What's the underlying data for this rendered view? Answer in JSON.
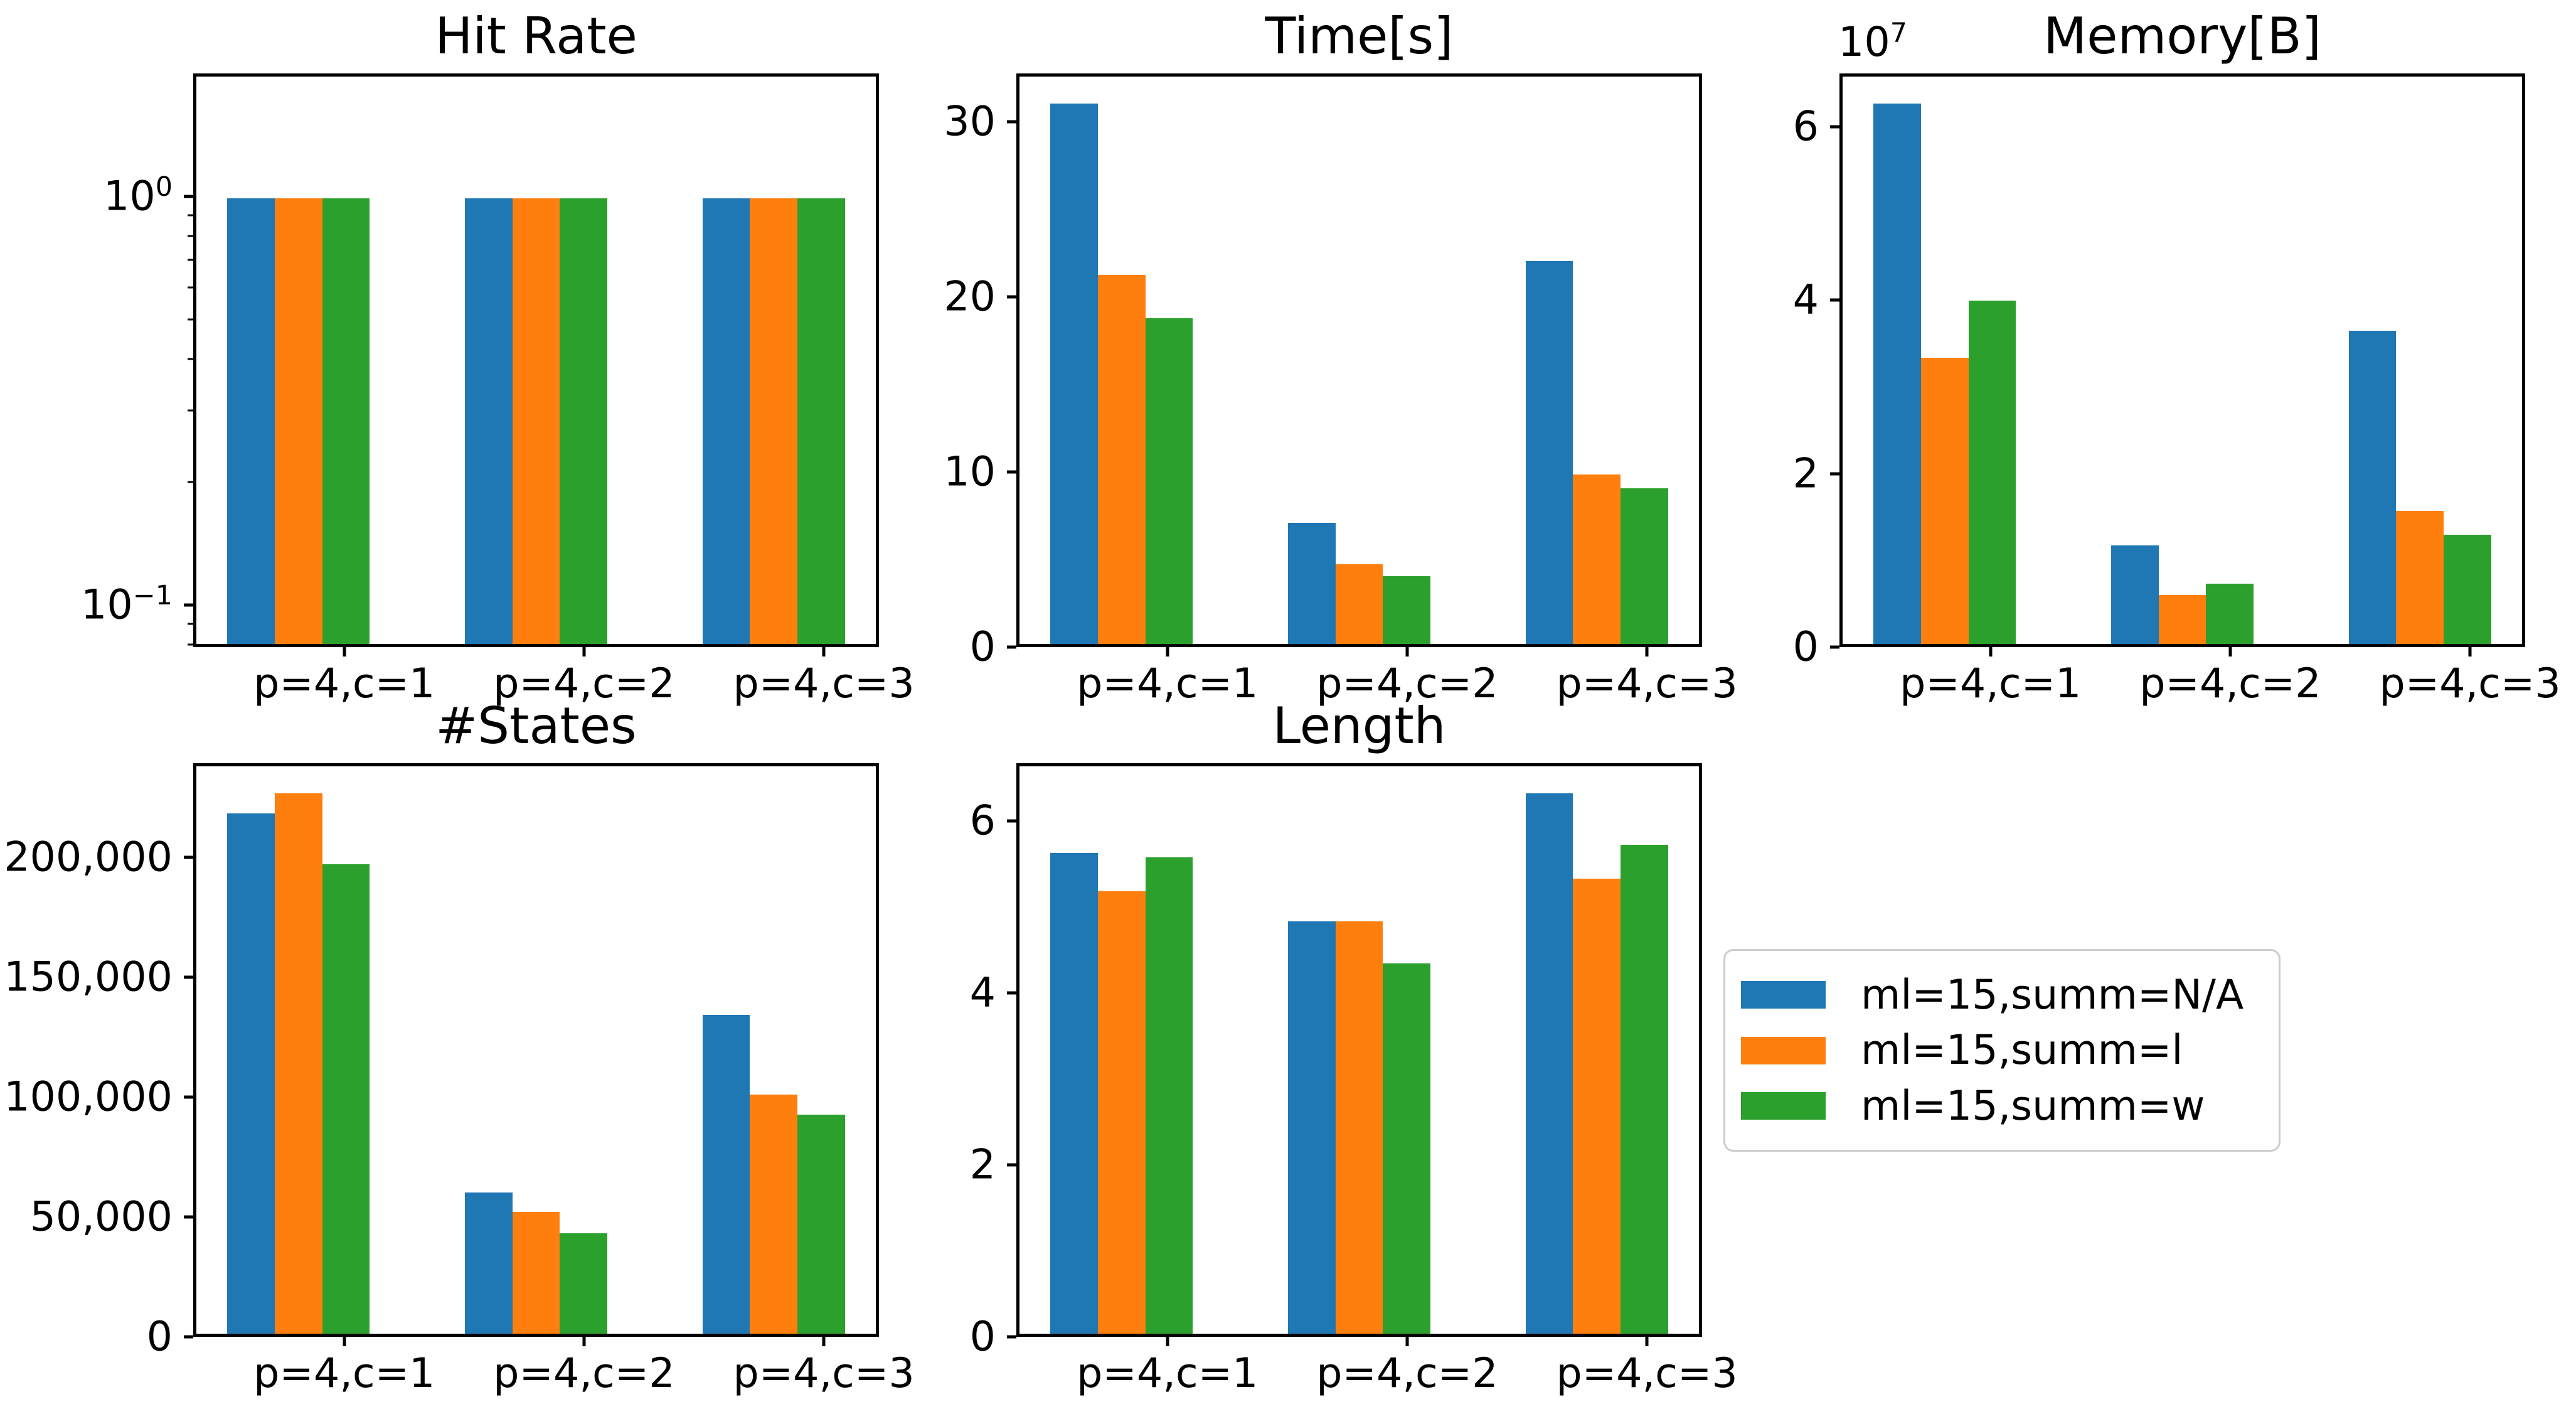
{
  "figure": {
    "background": "#ffffff"
  },
  "colors": {
    "blue": "#1f77b4",
    "orange": "#ff7f0e",
    "green": "#2ca02c",
    "axis": "#000000",
    "legend_border": "#cccccc",
    "text": "#000000"
  },
  "categories": [
    "p=4,c=1",
    "p=4,c=2",
    "p=4,c=3"
  ],
  "legend": {
    "items": [
      {
        "label": "ml=15,summ=N/A",
        "color": "blue"
      },
      {
        "label": "ml=15,summ=l",
        "color": "orange"
      },
      {
        "label": "ml=15,summ=w",
        "color": "green"
      }
    ]
  },
  "bar_layout": {
    "xlim": [
      -0.63,
      2.23
    ],
    "bar_width": 0.2,
    "ticks_at": [
      0,
      1,
      2
    ]
  },
  "chart_data": [
    {
      "id": "hit-rate",
      "type": "bar",
      "title": "Hit Rate",
      "yscale": "log",
      "ylim": [
        0.079,
        2.0
      ],
      "yticks": [
        {
          "v": 1.0,
          "label": "10^0"
        },
        {
          "v": 0.1,
          "label": "10^−1"
        }
      ],
      "minor_yticks": [
        0.08,
        0.09,
        0.2,
        0.3,
        0.4,
        0.5,
        0.6,
        0.7,
        0.8,
        0.9
      ],
      "categories": [
        "p=4,c=1",
        "p=4,c=2",
        "p=4,c=3"
      ],
      "series": [
        {
          "name": "ml=15,summ=N/A",
          "color": "blue",
          "values": [
            1.0,
            1.0,
            1.0
          ]
        },
        {
          "name": "ml=15,summ=l",
          "color": "orange",
          "values": [
            1.0,
            1.0,
            1.0
          ]
        },
        {
          "name": "ml=15,summ=w",
          "color": "green",
          "values": [
            1.0,
            1.0,
            1.0
          ]
        }
      ]
    },
    {
      "id": "time",
      "type": "bar",
      "title": "Time[s]",
      "yscale": "linear",
      "ylim": [
        0,
        32.76
      ],
      "yticks": [
        {
          "v": 0,
          "label": "0"
        },
        {
          "v": 10,
          "label": "10"
        },
        {
          "v": 20,
          "label": "20"
        },
        {
          "v": 30,
          "label": "30"
        }
      ],
      "categories": [
        "p=4,c=1",
        "p=4,c=2",
        "p=4,c=3"
      ],
      "series": [
        {
          "name": "ml=15,summ=N/A",
          "color": "blue",
          "values": [
            31.2,
            7.0,
            22.1
          ]
        },
        {
          "name": "ml=15,summ=l",
          "color": "orange",
          "values": [
            21.3,
            4.6,
            9.8
          ]
        },
        {
          "name": "ml=15,summ=w",
          "color": "green",
          "values": [
            18.8,
            3.9,
            9.0
          ]
        }
      ]
    },
    {
      "id": "memory",
      "type": "bar",
      "title": "Memory[B]",
      "yscale": "linear",
      "ylim": [
        0,
        66150000
      ],
      "offset_text": "10^7",
      "yticks": [
        {
          "v": 0,
          "label": "0"
        },
        {
          "v": 20000000,
          "label": "2"
        },
        {
          "v": 40000000,
          "label": "4"
        },
        {
          "v": 60000000,
          "label": "6"
        }
      ],
      "categories": [
        "p=4,c=1",
        "p=4,c=2",
        "p=4,c=3"
      ],
      "series": [
        {
          "name": "ml=15,summ=N/A",
          "color": "blue",
          "values": [
            63000000,
            11500000,
            36500000
          ]
        },
        {
          "name": "ml=15,summ=l",
          "color": "orange",
          "values": [
            33400000,
            5700000,
            15500000
          ]
        },
        {
          "name": "ml=15,summ=w",
          "color": "green",
          "values": [
            40000000,
            7000000,
            12700000
          ]
        }
      ]
    },
    {
      "id": "states",
      "type": "bar",
      "title": "#States",
      "yscale": "linear",
      "ylim": [
        0,
        239400
      ],
      "yticks": [
        {
          "v": 0,
          "label": "0"
        },
        {
          "v": 50000,
          "label": "50,000"
        },
        {
          "v": 100000,
          "label": "100,000"
        },
        {
          "v": 150000,
          "label": "150,000"
        },
        {
          "v": 200000,
          "label": "200,000"
        }
      ],
      "categories": [
        "p=4,c=1",
        "p=4,c=2",
        "p=4,c=3"
      ],
      "series": [
        {
          "name": "ml=15,summ=N/A",
          "color": "blue",
          "values": [
            219500,
            59500,
            134500
          ]
        },
        {
          "name": "ml=15,summ=l",
          "color": "orange",
          "values": [
            228000,
            51500,
            101000
          ]
        },
        {
          "name": "ml=15,summ=w",
          "color": "green",
          "values": [
            198000,
            42500,
            92500
          ]
        }
      ]
    },
    {
      "id": "length",
      "type": "bar",
      "title": "Length",
      "yscale": "linear",
      "ylim": [
        0,
        6.67
      ],
      "yticks": [
        {
          "v": 0,
          "label": "0"
        },
        {
          "v": 2,
          "label": "2"
        },
        {
          "v": 4,
          "label": "4"
        },
        {
          "v": 6,
          "label": "6"
        }
      ],
      "categories": [
        "p=4,c=1",
        "p=4,c=2",
        "p=4,c=3"
      ],
      "series": [
        {
          "name": "ml=15,summ=N/A",
          "color": "blue",
          "values": [
            5.65,
            4.85,
            6.35
          ]
        },
        {
          "name": "ml=15,summ=l",
          "color": "orange",
          "values": [
            5.2,
            4.85,
            5.35
          ]
        },
        {
          "name": "ml=15,summ=w",
          "color": "green",
          "values": [
            5.6,
            4.35,
            5.75
          ]
        }
      ]
    }
  ]
}
